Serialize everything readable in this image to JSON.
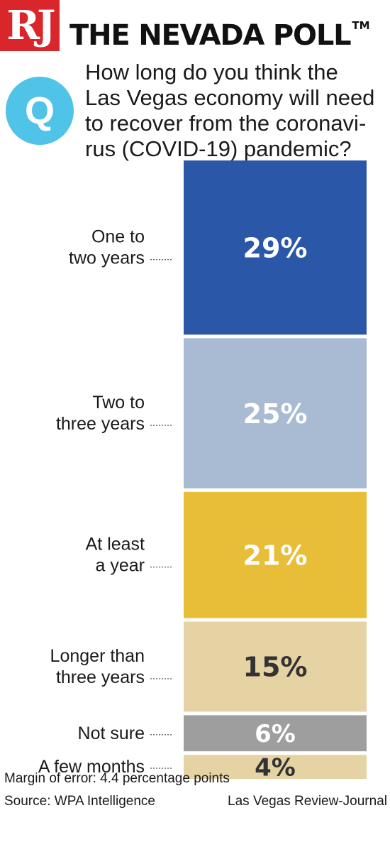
{
  "header": {
    "logo_text": "RJ",
    "title": "THE NEVADA POLL",
    "trademark": "TM"
  },
  "question": {
    "badge": "Q",
    "lines": [
      "How long do you think the",
      "Las Vegas economy will need",
      "to recover from the coronavi-",
      "rus (COVID-19) pandemic?"
    ]
  },
  "chart_data": {
    "type": "bar",
    "orientation": "stacked-vertical",
    "categories": [
      [
        "One to",
        "two years"
      ],
      [
        "Two to",
        "three years"
      ],
      [
        "At least",
        "a year"
      ],
      [
        "Longer than",
        "three years"
      ],
      [
        "Not sure"
      ],
      [
        "A few months"
      ]
    ],
    "values": [
      29,
      25,
      21,
      15,
      6,
      4
    ],
    "value_labels": [
      "29%",
      "25%",
      "21%",
      "15%",
      "6%",
      "4%"
    ],
    "colors": [
      "#2b57a8",
      "#a8bbd3",
      "#e8bd38",
      "#e6d3a4",
      "#9e9e9e",
      "#e6d3a4"
    ],
    "label_colors": [
      "#ffffff",
      "#ffffff",
      "#ffffff",
      "#333333",
      "#ffffff",
      "#333333"
    ],
    "unit": "%"
  },
  "footer": {
    "margin": "Margin of error: 4.4 percentage points",
    "source": "Source: WPA Intelligence",
    "credit": "Las Vegas Review-Journal"
  }
}
